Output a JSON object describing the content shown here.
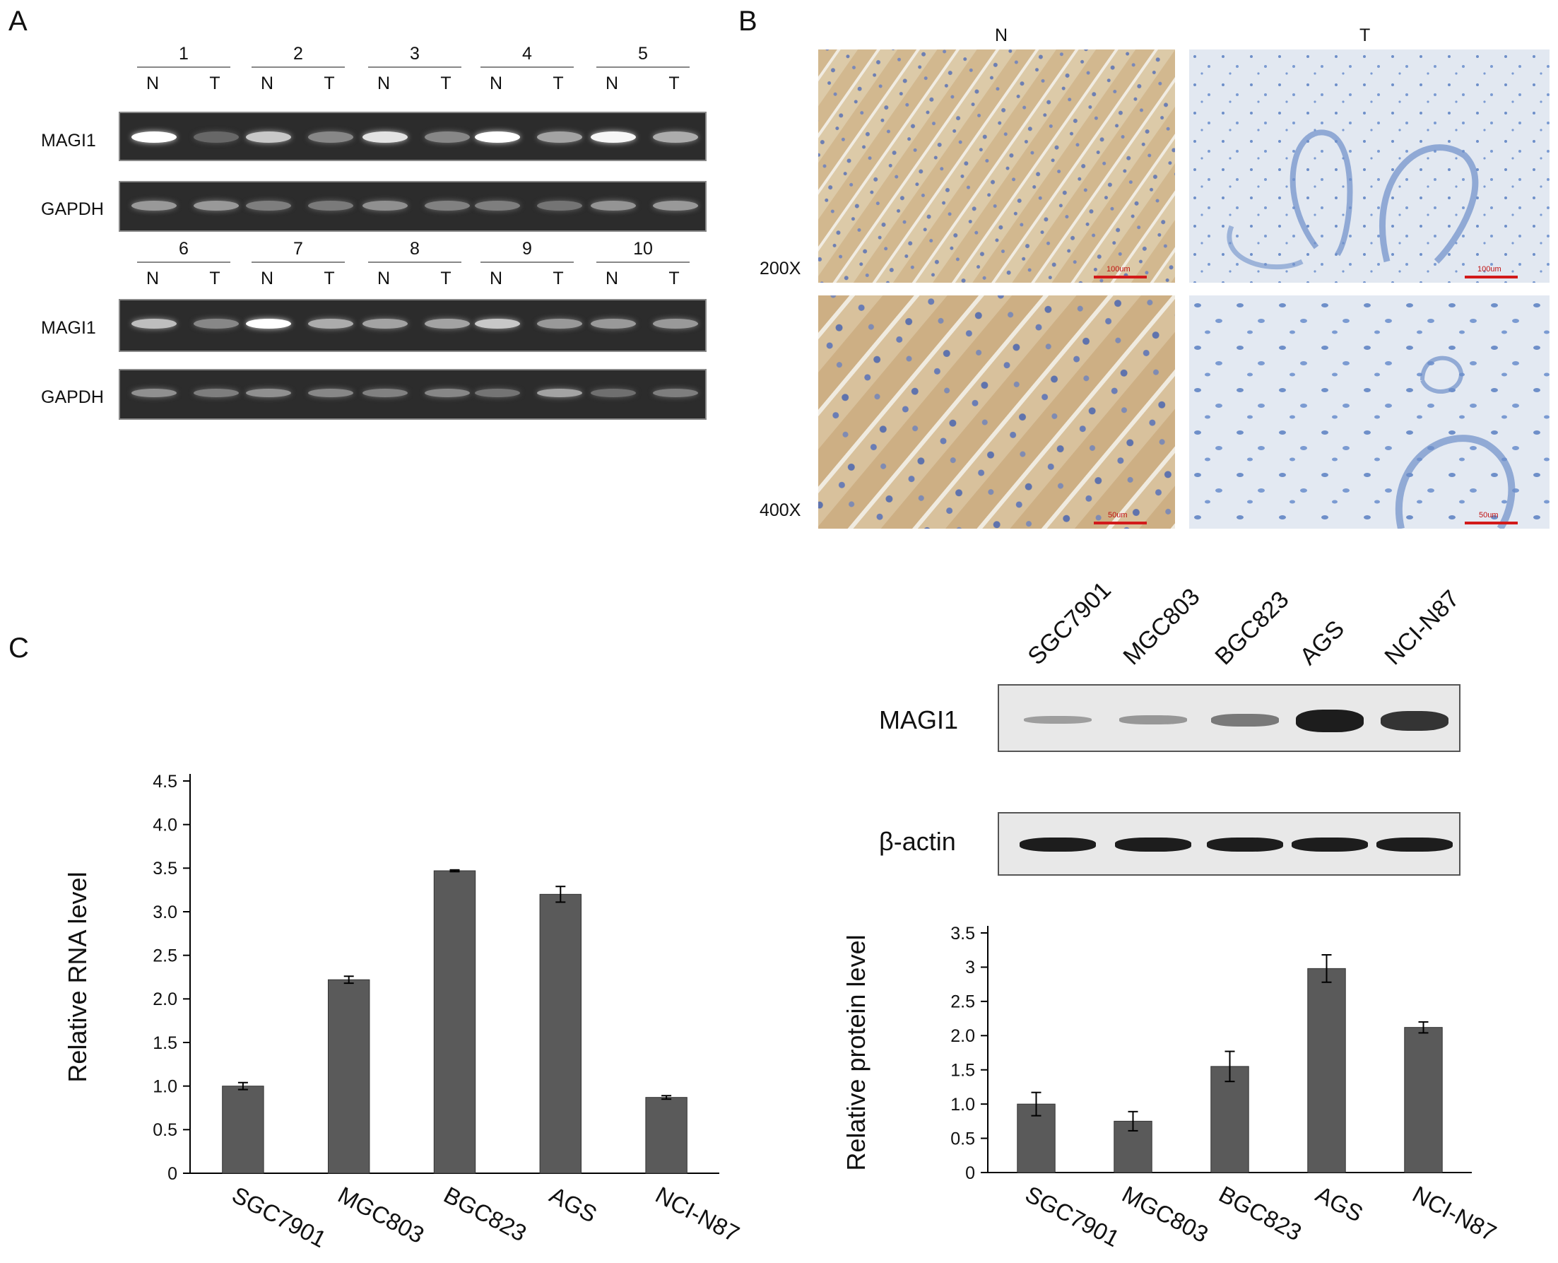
{
  "panels": {
    "a": "A",
    "b": "B",
    "c": "C"
  },
  "panel_a": {
    "pair_numbers_top": [
      "1",
      "2",
      "3",
      "4",
      "5"
    ],
    "pair_numbers_bottom": [
      "6",
      "7",
      "8",
      "9",
      "10"
    ],
    "lane_n": "N",
    "lane_t": "T",
    "row_magi1": "MAGI1",
    "row_gapdh": "GAPDH"
  },
  "panel_b": {
    "col_n": "N",
    "col_t": "T",
    "mag_200": "200X",
    "mag_400": "400X",
    "scale_100": "100um",
    "scale_50": "50um"
  },
  "western": {
    "cell_lines": [
      "SGC7901",
      "MGC803",
      "BGC823",
      "AGS",
      "NCI-N87"
    ],
    "row_magi1": "MAGI1",
    "row_actin": "β-actin",
    "magi1_band_intensity": [
      0.15,
      0.2,
      0.4,
      1.0,
      0.85
    ]
  },
  "colors": {
    "bar": "#5a5a5a",
    "ihc_normal": "#d9c4a2",
    "ihc_tumor": "#dfe6f0",
    "scale": "#d21a1a"
  },
  "chart_data": [
    {
      "type": "bar",
      "categories": [
        "SGC7901",
        "MGC803",
        "BGC823",
        "AGS",
        "NCI-N87"
      ],
      "values": [
        1.0,
        2.22,
        3.47,
        3.2,
        0.87
      ],
      "errors": [
        0.04,
        0.04,
        0.01,
        0.09,
        0.02
      ],
      "ylabel": "Relative RNA level",
      "ylim": [
        0,
        4.5
      ],
      "yticks": [
        "0",
        "0.5",
        "1.0",
        "1.5",
        "2.0",
        "2.5",
        "3.0",
        "3.5",
        "4.0",
        "4.5"
      ],
      "grid": false
    },
    {
      "type": "bar",
      "categories": [
        "SGC7901",
        "MGC803",
        "BGC823",
        "AGS",
        "NCI-N87"
      ],
      "values": [
        1.0,
        0.75,
        1.55,
        2.98,
        2.12
      ],
      "errors": [
        0.17,
        0.14,
        0.22,
        0.2,
        0.08
      ],
      "ylabel": "Relative protein level",
      "ylim": [
        0,
        3.5
      ],
      "yticks": [
        "0",
        "0.5",
        "1.0",
        "1.5",
        "2.0",
        "2.5",
        "3",
        "3.5"
      ],
      "grid": false
    }
  ]
}
